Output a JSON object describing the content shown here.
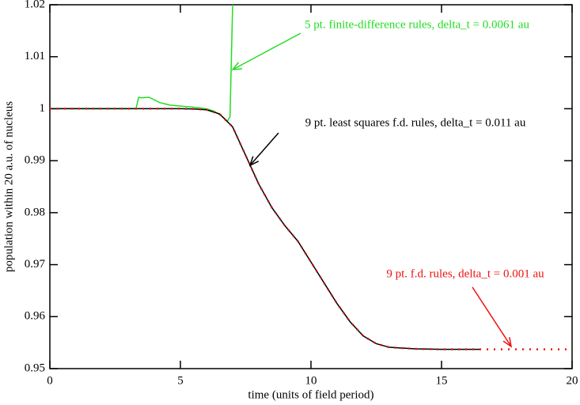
{
  "chart_data": {
    "type": "line",
    "xlabel": "time (units of field period)",
    "ylabel": "population within 20 a.u. of nucleus",
    "xlim": [
      0,
      20
    ],
    "xticks": [
      0,
      5,
      10,
      15,
      20
    ],
    "ylim": [
      0.95,
      1.02
    ],
    "yticks": [
      0.95,
      0.96,
      0.97,
      0.98,
      0.99,
      1,
      1.01,
      1.02
    ],
    "series": [
      {
        "name": "5 pt. finite-difference rules, delta_t = 0.0061 au",
        "color": "#22dd22",
        "style": "solid",
        "x": [
          0,
          3.3,
          3.4,
          3.5,
          3.8,
          4.2,
          4.6,
          5,
          5.5,
          6,
          6.3,
          6.6,
          6.8,
          6.9,
          7.0
        ],
        "values": [
          1,
          1,
          1.0022,
          1.0021,
          1.0022,
          1.0012,
          1.0007,
          1.0005,
          1.0003,
          1.0,
          0.9995,
          0.9985,
          0.9976,
          0.9985,
          1.02
        ]
      },
      {
        "name": "9 pt. least squares f.d. rules, delta_t = 0.011 au",
        "color": "#000000",
        "style": "solid",
        "x": [
          0,
          5,
          5.5,
          6,
          6.5,
          7,
          7.5,
          8,
          8.5,
          9,
          9.5,
          10,
          10.5,
          11,
          11.5,
          12,
          12.5,
          13,
          14,
          15,
          16.5
        ],
        "values": [
          1,
          1,
          0.99995,
          0.9998,
          0.999,
          0.9965,
          0.991,
          0.9855,
          0.981,
          0.9775,
          0.9745,
          0.9705,
          0.9665,
          0.9625,
          0.959,
          0.9563,
          0.9548,
          0.9541,
          0.9538,
          0.9537,
          0.9537
        ]
      },
      {
        "name": "9 pt. f.d. rules, delta_t = 0.001 au",
        "color": "#ee1111",
        "style": "dotted",
        "x": [
          0,
          5,
          5.5,
          6,
          6.5,
          7,
          7.5,
          8,
          8.5,
          9,
          9.5,
          10,
          10.5,
          11,
          11.5,
          12,
          12.5,
          13,
          14,
          15,
          16.5,
          17,
          18,
          19,
          20
        ],
        "values": [
          1,
          1,
          0.99995,
          0.9998,
          0.999,
          0.9965,
          0.991,
          0.9855,
          0.981,
          0.9775,
          0.9745,
          0.9705,
          0.9665,
          0.9625,
          0.959,
          0.9563,
          0.9548,
          0.9541,
          0.9538,
          0.9537,
          0.9537,
          0.9537,
          0.9537,
          0.9537,
          0.9537
        ]
      }
    ]
  }
}
